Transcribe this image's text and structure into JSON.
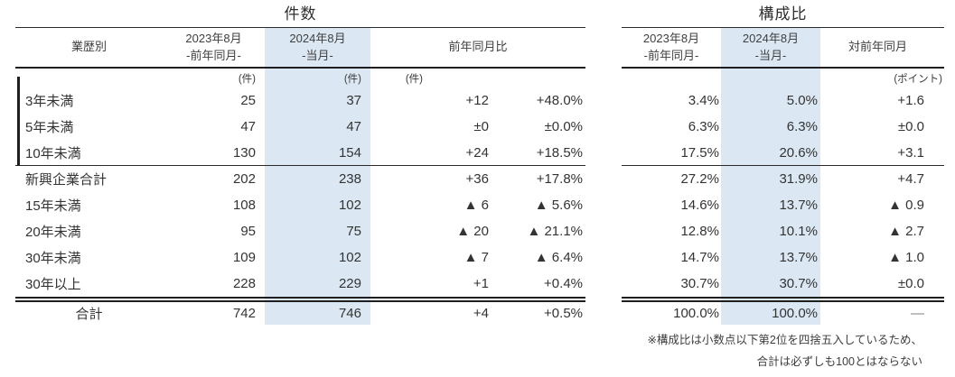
{
  "left_table": {
    "title": "件数",
    "header": {
      "col_label": "業歴別",
      "col_2023_line1": "2023年8月",
      "col_2023_line2": "-前年同月-",
      "col_2024_line1": "2024年8月",
      "col_2024_line2": "-当月-",
      "col_diff": "前年同月比"
    },
    "units": {
      "u2023": "(件)",
      "u2024": "(件)",
      "udiff": "(件)"
    },
    "rows": [
      {
        "label": "3年未満",
        "v2023": "25",
        "v2024": "37",
        "diff": "+12",
        "pct": "+48.0%"
      },
      {
        "label": "5年未満",
        "v2023": "47",
        "v2024": "47",
        "diff": "±0",
        "pct": "±0.0%"
      },
      {
        "label": "10年未満",
        "v2023": "130",
        "v2024": "154",
        "diff": "+24",
        "pct": "+18.5%"
      },
      {
        "label": "新興企業合計",
        "v2023": "202",
        "v2024": "238",
        "diff": "+36",
        "pct": "+17.8%"
      },
      {
        "label": "15年未満",
        "v2023": "108",
        "v2024": "102",
        "diff": "▲ 6",
        "pct": "▲ 5.6%"
      },
      {
        "label": "20年未満",
        "v2023": "95",
        "v2024": "75",
        "diff": "▲ 20",
        "pct": "▲ 21.1%"
      },
      {
        "label": "30年未満",
        "v2023": "109",
        "v2024": "102",
        "diff": "▲ 7",
        "pct": "▲ 6.4%"
      },
      {
        "label": "30年以上",
        "v2023": "228",
        "v2024": "229",
        "diff": "+1",
        "pct": "+0.4%"
      }
    ],
    "total": {
      "label": "合計",
      "v2023": "742",
      "v2024": "746",
      "diff": "+4",
      "pct": "+0.5%"
    }
  },
  "right_table": {
    "title": "構成比",
    "header": {
      "col_2023_line1": "2023年8月",
      "col_2023_line2": "-前年同月-",
      "col_2024_line1": "2024年8月",
      "col_2024_line2": "-当月-",
      "col_diff": "対前年同月"
    },
    "units": {
      "udiff": "(ポイント)"
    },
    "rows": [
      {
        "v2023": "3.4%",
        "v2024": "5.0%",
        "diff": "+1.6"
      },
      {
        "v2023": "6.3%",
        "v2024": "6.3%",
        "diff": "±0.0"
      },
      {
        "v2023": "17.5%",
        "v2024": "20.6%",
        "diff": "+3.1"
      },
      {
        "v2023": "27.2%",
        "v2024": "31.9%",
        "diff": "+4.7"
      },
      {
        "v2023": "14.6%",
        "v2024": "13.7%",
        "diff": "▲ 0.9"
      },
      {
        "v2023": "12.8%",
        "v2024": "10.1%",
        "diff": "▲ 2.7"
      },
      {
        "v2023": "14.7%",
        "v2024": "13.7%",
        "diff": "▲ 1.0"
      },
      {
        "v2023": "30.7%",
        "v2024": "30.7%",
        "diff": "±0.0"
      }
    ],
    "total": {
      "v2023": "100.0%",
      "v2024": "100.0%",
      "diff": "―"
    }
  },
  "footnote": {
    "line1": "※構成比は小数点以下第2位を四捨五入しているため、",
    "line2": "合計は必ずしも100とはならない"
  },
  "colors": {
    "highlight": "#dbe8f4",
    "rule": "#1f1f1f",
    "text": "#333333"
  }
}
